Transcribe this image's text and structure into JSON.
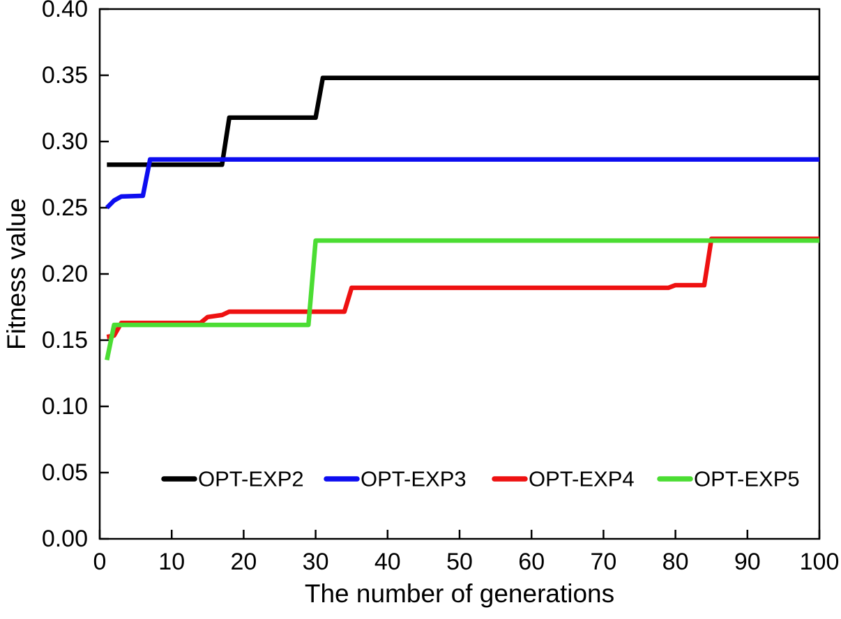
{
  "figure": {
    "description": "Line chart of fitness value versus number of generations for four experiments"
  },
  "chart_data": {
    "type": "line",
    "title": "",
    "xlabel": "The number of generations",
    "ylabel": "Fitness value",
    "xlim": [
      0,
      100
    ],
    "ylim": [
      0.0,
      0.4
    ],
    "xticks": [
      "0",
      "10",
      "20",
      "30",
      "40",
      "50",
      "60",
      "70",
      "80",
      "90",
      "100"
    ],
    "yticks": [
      "0.00",
      "0.05",
      "0.10",
      "0.15",
      "0.20",
      "0.25",
      "0.30",
      "0.35",
      "0.40"
    ],
    "grid": false,
    "legend_position": "inside-bottom",
    "axis_color": "#000000",
    "series": [
      {
        "name": "OPT-EXP2",
        "color": "#000000",
        "points": [
          [
            1,
            0.2825
          ],
          [
            17,
            0.2825
          ],
          [
            18,
            0.318
          ],
          [
            30,
            0.318
          ],
          [
            31,
            0.348
          ],
          [
            100,
            0.348
          ]
        ]
      },
      {
        "name": "OPT-EXP3",
        "color": "#0d0df0",
        "points": [
          [
            1,
            0.25
          ],
          [
            2,
            0.2555
          ],
          [
            3,
            0.2585
          ],
          [
            6,
            0.259
          ],
          [
            7,
            0.2865
          ],
          [
            100,
            0.2865
          ]
        ]
      },
      {
        "name": "OPT-EXP4",
        "color": "#ee1111",
        "points": [
          [
            1,
            0.1525
          ],
          [
            2,
            0.1535
          ],
          [
            3,
            0.163
          ],
          [
            14,
            0.163
          ],
          [
            15,
            0.1675
          ],
          [
            17,
            0.169
          ],
          [
            18,
            0.1715
          ],
          [
            34,
            0.1715
          ],
          [
            35,
            0.1895
          ],
          [
            79,
            0.1895
          ],
          [
            80,
            0.1915
          ],
          [
            84,
            0.1915
          ],
          [
            85,
            0.2265
          ],
          [
            100,
            0.2265
          ]
        ]
      },
      {
        "name": "OPT-EXP5",
        "color": "#4bdd33",
        "points": [
          [
            1,
            0.135
          ],
          [
            2,
            0.1615
          ],
          [
            29,
            0.1615
          ],
          [
            30,
            0.2252
          ],
          [
            100,
            0.2252
          ]
        ]
      }
    ]
  }
}
